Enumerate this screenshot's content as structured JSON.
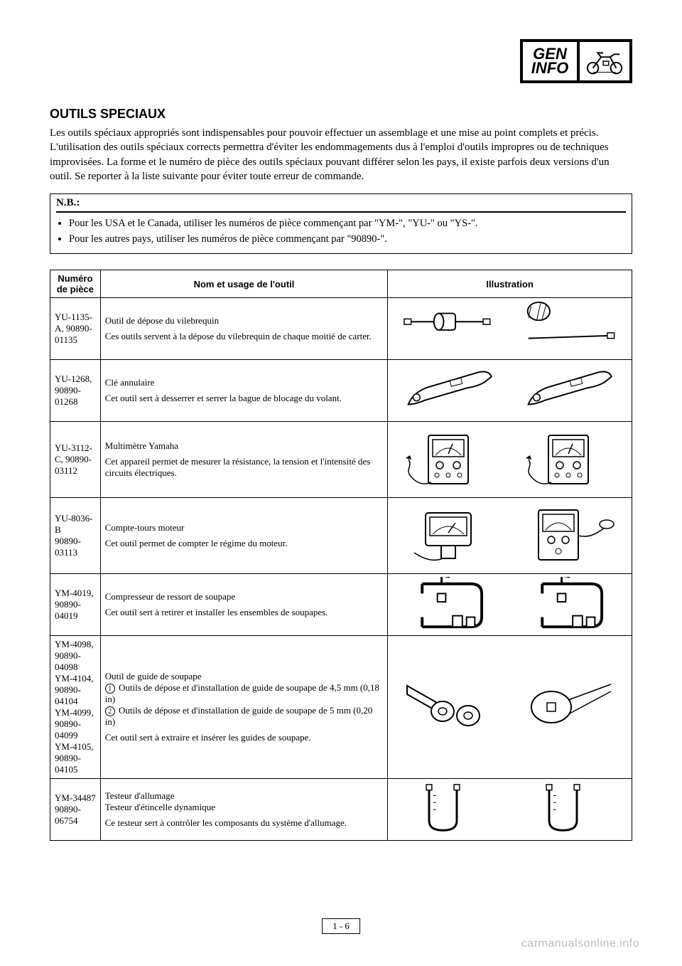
{
  "badge": {
    "line1": "GEN",
    "line2": "INFO"
  },
  "heading": "OUTILS SPECIAUX",
  "intro": "Les outils spéciaux appropriés sont indispensables pour pouvoir effectuer un assemblage et une mise au point complets et précis. L'utilisation des outils spéciaux corrects permettra d'éviter les endommagements dus à l'emploi d'outils impropres ou de techniques improvisées. La forme et le numéro de pièce des outils spéciaux pouvant différer selon les pays, il existe parfois deux versions d'un outil. Se reporter à la liste suivante pour éviter toute erreur de commande.",
  "nb": {
    "label": "N.B.:",
    "items": [
      "Pour les USA et le Canada, utiliser les numéros de pièce commençant par \"YM-\", \"YU-\" ou \"YS-\".",
      "Pour les autres pays, utiliser les numéros de pièce commençant par \"90890-\"."
    ]
  },
  "table": {
    "headers": {
      "num": "Numéro de pièce",
      "name": "Nom et usage de l'outil",
      "illustration": "Illustration"
    },
    "rows": [
      {
        "pn": [
          "YU-1135-A, 90890-01135"
        ],
        "name_lines": [
          "Outil de dépose du vilebrequin",
          "",
          "Ces outils servent à la dépose du vilebrequin de chaque moitié de carter."
        ],
        "svg_left": "hammer",
        "svg_right": "rod_weight"
      },
      {
        "pn": [
          "YU-1268, 90890-01268"
        ],
        "name_lines": [
          "Clé annulaire",
          "",
          "Cet outil sert à desserrer et serrer la bague de blocage du volant."
        ],
        "svg_left": "spanner",
        "svg_right": "spanner"
      },
      {
        "pn": [
          "YU-3112-C, 90890-03112"
        ],
        "name_lines": [
          "Multimètre Yamaha",
          "",
          "Cet appareil permet de mesurer la résistance, la tension et l'intensité des circuits électriques."
        ],
        "svg_left": "multimeter",
        "svg_right": "multimeter"
      },
      {
        "pn": [
          "YU-8036-B",
          "90890-03113"
        ],
        "name_lines": [
          "Compte-tours moteur",
          "",
          "Cet outil permet de compter le régime du moteur."
        ],
        "svg_left": "tacho_a",
        "svg_right": "tacho_b"
      },
      {
        "pn": [
          "YM-4019, 90890-04019"
        ],
        "name_lines": [
          "Compresseur de ressort de soupape",
          "",
          "Cet outil sert à retirer et installer les ensembles de soupapes."
        ],
        "svg_left": "cclamp",
        "svg_right": "cclamp"
      },
      {
        "pn": [
          "YM-4098, 90890-04098",
          "YM-4104, 90890-04104",
          "YM-4099, 90890-04099",
          "YM-4105, 90890-04105"
        ],
        "name_lines": [
          "Outil de guide de soupape",
          "① Outils de dépose et d'installation de guide de soupape de 4,5 mm (0,18 in)",
          "② Outils de dépose et d'installation de guide de soupape de 5 mm (0,20 in)",
          "",
          "Cet outil sert à extraire et insérer les guides de soupape."
        ],
        "svg_left": "guide_a",
        "svg_right": "guide_b"
      },
      {
        "pn": [
          "YM-34487",
          "90890-06754"
        ],
        "name_lines": [
          "Testeur d'allumage",
          "Testeur d'étincelle dynamique",
          "",
          "Ce testeur sert à contrôler les composants du système d'allumage."
        ],
        "svg_left": "u_tester",
        "svg_right": "u_tester"
      }
    ]
  },
  "page_number": "1 - 6",
  "watermark": "carmanualsonline.info",
  "colors": {
    "border": "#000000",
    "watermark": "#bdbdbd",
    "bg": "#ffffff"
  }
}
